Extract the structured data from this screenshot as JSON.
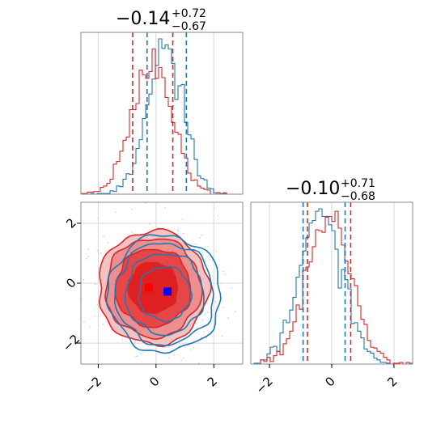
{
  "chart_data": [
    {
      "type": "histogram",
      "panel": "top-left",
      "title": {
        "median": "−0.14",
        "upper": "+0.72",
        "lower": "−0.67"
      },
      "xlim": [
        -2.6,
        3.0
      ],
      "grid": true,
      "series": [
        {
          "color": "#1f77b4",
          "center": 0.3,
          "sigma": 0.62,
          "quantiles": [
            -0.31,
            1.05
          ]
        },
        {
          "color": "#d62728",
          "center": -0.14,
          "sigma": 0.7,
          "quantiles": [
            -0.81,
            0.58
          ]
        }
      ]
    },
    {
      "type": "histogram",
      "panel": "bottom-right",
      "title": {
        "median": "−0.10",
        "upper": "+0.71",
        "lower": "−0.68"
      },
      "xlim": [
        -2.6,
        2.6
      ],
      "x_ticks": [
        "−2",
        "0",
        "2"
      ],
      "grid": true,
      "series": [
        {
          "color": "#1f77b4",
          "center": -0.35,
          "sigma": 0.68,
          "quantiles": [
            -0.92,
            0.43
          ]
        },
        {
          "color": "#d62728",
          "center": -0.1,
          "sigma": 0.7,
          "quantiles": [
            -0.78,
            0.61
          ]
        }
      ]
    },
    {
      "type": "scatter",
      "panel": "bottom-left",
      "xlim": [
        -2.6,
        3.0
      ],
      "ylim": [
        -2.7,
        2.7
      ],
      "x_ticks": [
        "−2",
        "0",
        "2"
      ],
      "y_ticks": [
        "−2",
        "0",
        "2"
      ],
      "grid": true,
      "contours": [
        {
          "color": "#1f77b4",
          "style": "lines",
          "center": [
            0.3,
            -0.35
          ],
          "radii": [
            0.9,
            1.35,
            1.7,
            1.95
          ]
        },
        {
          "color": "#d62728",
          "style": "filled",
          "center": [
            -0.1,
            -0.15
          ],
          "radii": [
            0.85,
            1.3,
            1.65,
            1.9
          ]
        }
      ],
      "markers": [
        {
          "color": "#0000ff",
          "x": 0.4,
          "y": -0.28
        },
        {
          "color": "#ff0000",
          "x": -0.25,
          "y": -0.15
        }
      ]
    }
  ]
}
